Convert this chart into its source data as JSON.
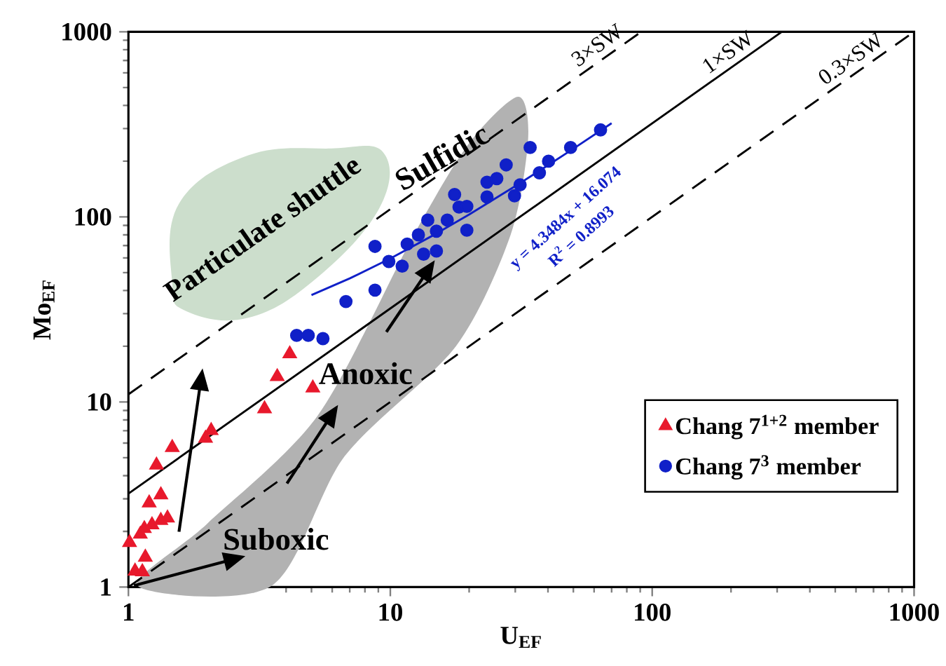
{
  "chart_data": {
    "type": "scatter",
    "xlabel": "U$_{EF}$",
    "ylabel": "Mo$_{EF}$",
    "xlim": [
      1,
      1000
    ],
    "ylim": [
      1,
      1000
    ],
    "xticks": [
      1,
      10,
      100,
      1000
    ],
    "yticks": [
      1,
      10,
      100,
      1000
    ],
    "log": "xy",
    "grid": false,
    "legend": "bottom right",
    "annotations": [
      "Particulate shuttle",
      "Sulfidic",
      "Anoxic",
      "Suboxic",
      "y = 4.3484x + 16.074",
      "R$^{2}$ = 0.8993"
    ],
    "series": [
      {
        "name": "Chang 7$^{1+2}$ member",
        "marker": "triangle",
        "color": "#e8192c",
        "x": [
          4.13,
          3.7,
          5.06,
          3.31,
          2.07,
          1.97,
          1.47,
          1.28,
          1.33,
          1.2,
          1.41,
          1.33,
          1.23,
          1.15,
          1.11,
          1.01,
          1.16,
          1.06,
          1.13
        ],
        "values": [
          18.2,
          13.7,
          11.9,
          9.18,
          7.01,
          6.37,
          5.67,
          4.56,
          3.15,
          2.85,
          2.36,
          2.29,
          2.17,
          2.07,
          1.93,
          1.74,
          1.45,
          1.22,
          1.21
        ]
      },
      {
        "name": "Chang 7$^{3}$ member",
        "marker": "circle",
        "color": "#1020c8",
        "x": [
          4.39,
          4.86,
          5.53,
          6.77,
          8.74,
          8.74,
          9.87,
          11.1,
          11.6,
          12.8,
          13.4,
          13.9,
          15.0,
          15.0,
          16.5,
          17.6,
          18.3,
          19.6,
          19.6,
          23.4,
          23.4,
          25.5,
          27.7,
          29.8,
          31.3,
          34.2,
          37.1,
          40.2,
          48.8,
          63.5
        ],
        "values": [
          22.9,
          22.9,
          22.0,
          34.9,
          40.2,
          69.3,
          57.4,
          54.2,
          71.3,
          80.0,
          62.9,
          96.1,
          83.7,
          65.4,
          96.1,
          132,
          113,
          114,
          84.7,
          154,
          128,
          161,
          191,
          130,
          149,
          237,
          173,
          200,
          237,
          295
        ]
      },
      {
        "type": "line",
        "line_style": "solid",
        "color": "#1020c8",
        "x": [
          5,
          7,
          10,
          15,
          20,
          30,
          40,
          50,
          70
        ],
        "values": [
          37.8,
          46.5,
          59.6,
          81.3,
          103,
          146.5,
          190,
          233.5,
          320.5
        ]
      },
      {
        "name": "3×SW",
        "type": "line",
        "line_style": "dashed",
        "color": "#000000",
        "x": [
          1,
          90.9
        ],
        "values": [
          11,
          1000
        ]
      },
      {
        "name": "1×SW",
        "type": "line",
        "line_style": "solid",
        "color": "#000000",
        "x": [
          1,
          312.5
        ],
        "values": [
          3.2,
          1000
        ]
      },
      {
        "name": "0.3×SW",
        "type": "line",
        "line_style": "dashed",
        "color": "#000000",
        "x": [
          1,
          1000
        ],
        "values": [
          1,
          1000
        ]
      }
    ]
  }
}
